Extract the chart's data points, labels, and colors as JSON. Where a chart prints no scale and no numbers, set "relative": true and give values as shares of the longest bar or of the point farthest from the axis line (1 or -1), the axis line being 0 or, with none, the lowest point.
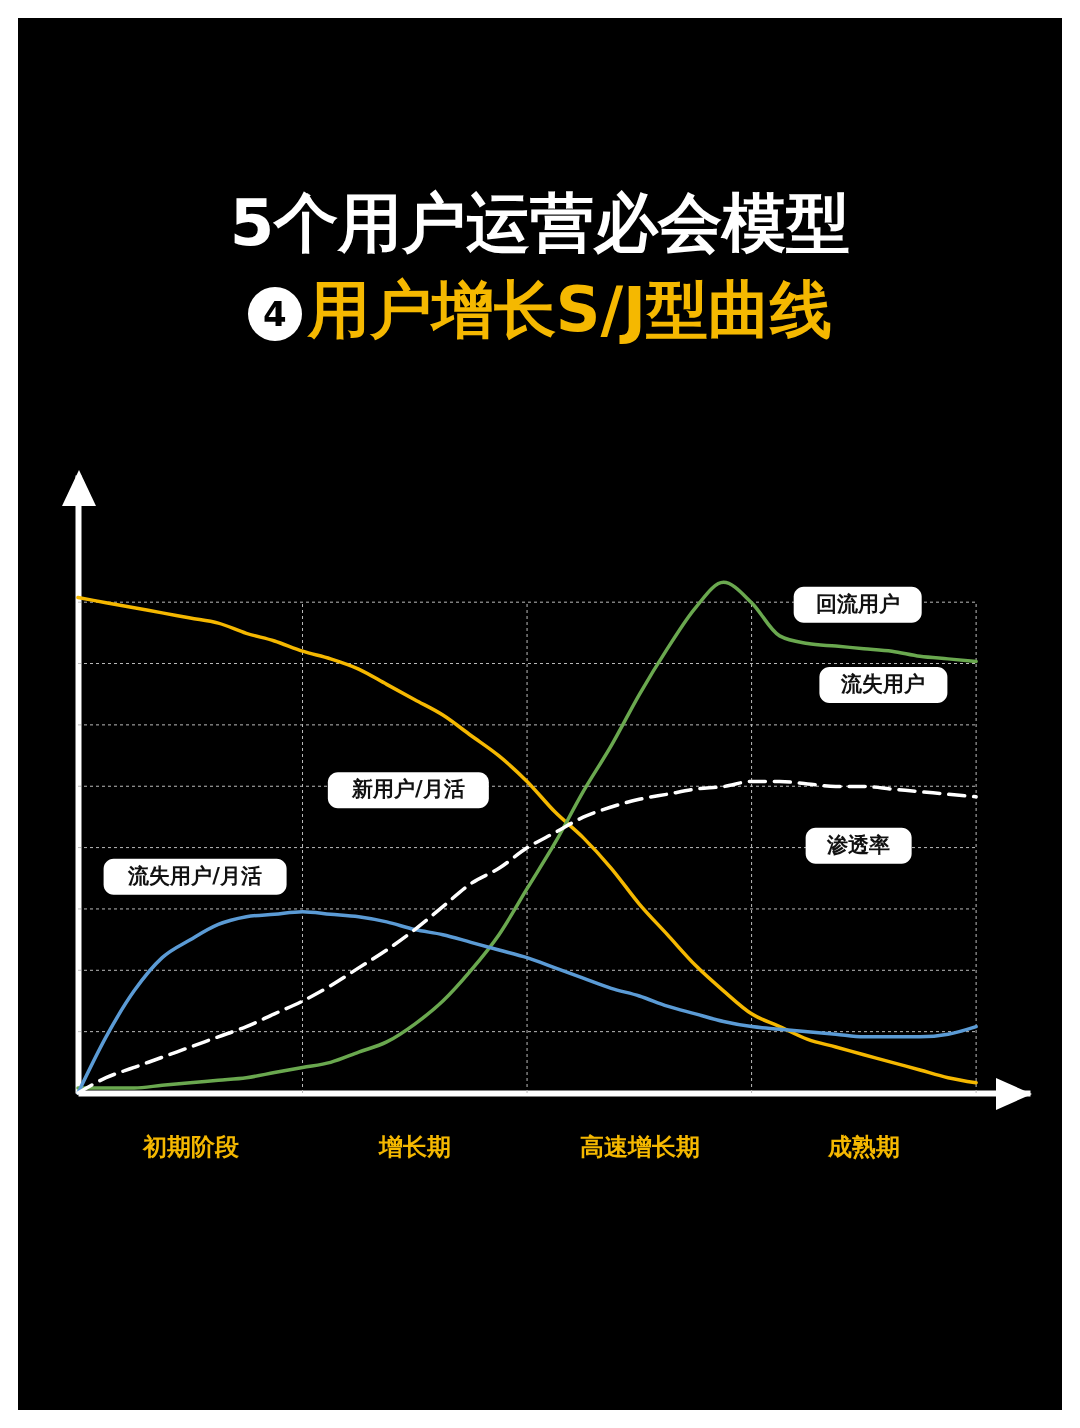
{
  "chart_data": {
    "type": "line",
    "title": "5个用户运营必会模型",
    "subtitle": "用户增长S/J型曲线",
    "relative": true,
    "grid": true,
    "categories": [
      null,
      null,
      null,
      null,
      "初期阶段",
      null,
      null,
      null,
      null,
      null,
      null,
      null,
      "增长期",
      null,
      null,
      null,
      null,
      null,
      null,
      null,
      "高速增长期",
      null,
      null,
      null,
      null,
      null,
      null,
      null,
      "成熟期",
      null,
      null,
      null,
      null
    ],
    "annotations": [
      "4",
      "流失用户"
    ],
    "series": [
      {
        "name": "新用户/月活",
        "color": "#f5b800",
        "line_style": "solid",
        "values": [
          0.97,
          0.96,
          0.95,
          0.94,
          0.93,
          0.92,
          0.9,
          0.885,
          0.865,
          0.85,
          0.83,
          0.8,
          0.77,
          0.74,
          0.7,
          0.66,
          0.61,
          0.55,
          0.5,
          0.44,
          0.37,
          0.31,
          0.25,
          0.2,
          0.155,
          0.13,
          0.105,
          0.09,
          0.075,
          0.06,
          0.045,
          0.03,
          0.02
        ]
      },
      {
        "name": "回流用户",
        "color": "#6aa84f",
        "line_style": "solid",
        "values": [
          0.01,
          0.01,
          0.01,
          0.015,
          0.02,
          0.025,
          0.03,
          0.04,
          0.05,
          0.06,
          0.08,
          0.1,
          0.135,
          0.18,
          0.24,
          0.31,
          0.4,
          0.49,
          0.59,
          0.68,
          0.78,
          0.87,
          0.95,
          1,
          0.96,
          0.895,
          0.88,
          0.875,
          0.87,
          0.865,
          0.855,
          0.85,
          0.845
        ]
      },
      {
        "name": "流失用户/月活",
        "color": "#5b9bd5",
        "line_style": "solid",
        "values": [
          0,
          0.11,
          0.2,
          0.265,
          0.3,
          0.33,
          0.345,
          0.35,
          0.355,
          0.35,
          0.345,
          0.335,
          0.32,
          0.31,
          0.295,
          0.28,
          0.265,
          0.245,
          0.225,
          0.205,
          0.19,
          0.17,
          0.155,
          0.14,
          0.13,
          0.125,
          0.12,
          0.115,
          0.11,
          0.11,
          0.11,
          0.115,
          0.13
        ]
      },
      {
        "name": "渗透率",
        "color": "#ffffff",
        "line_style": "dashed",
        "values": [
          0,
          0.03,
          0.05,
          0.07,
          0.09,
          0.11,
          0.13,
          0.155,
          0.18,
          0.21,
          0.245,
          0.28,
          0.32,
          0.365,
          0.41,
          0.44,
          0.48,
          0.51,
          0.54,
          0.56,
          0.575,
          0.585,
          0.595,
          0.6,
          0.61,
          0.61,
          0.605,
          0.6,
          0.6,
          0.595,
          0.59,
          0.585,
          0.58
        ]
      }
    ]
  }
}
